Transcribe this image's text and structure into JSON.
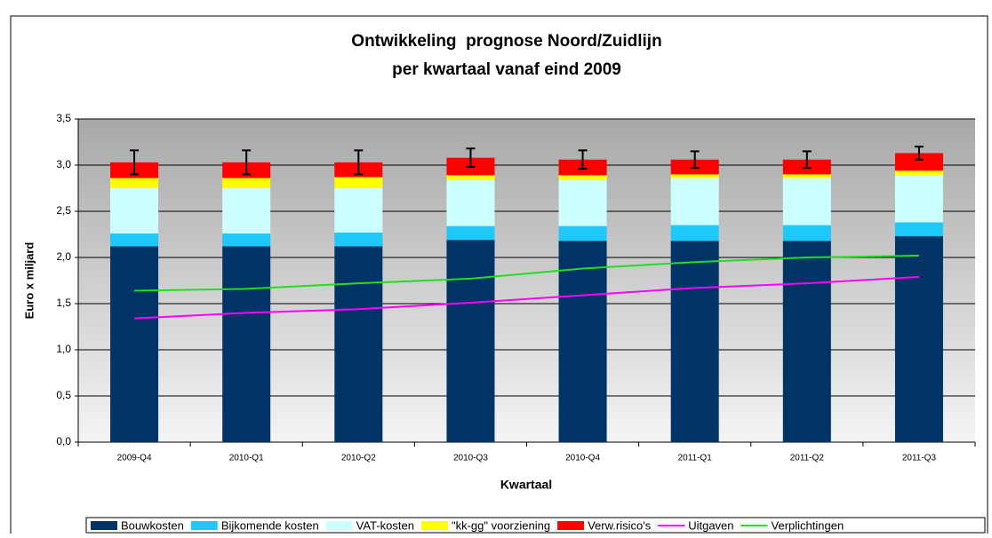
{
  "chart_data": {
    "type": "bar",
    "title": [
      "Ontwikkeling  prognose Noord/Zuidlijn",
      "per kwartaal vanaf eind 2009"
    ],
    "y_label": "Euro x miljard",
    "x_label": "Kwartaal",
    "categories": [
      "2009-Q4",
      "2010-Q1",
      "2010-Q2",
      "2010-Q3",
      "2010-Q4",
      "2011-Q1",
      "2011-Q2",
      "2011-Q3"
    ],
    "series": [
      {
        "name": "Bouwkosten",
        "color": "#003366",
        "type": "bar",
        "values": [
          2.12,
          2.12,
          2.12,
          2.19,
          2.18,
          2.18,
          2.18,
          2.23
        ]
      },
      {
        "name": "Bijkomende kosten",
        "color": "#1ec8f8",
        "type": "bar",
        "values": [
          0.14,
          0.14,
          0.15,
          0.15,
          0.16,
          0.17,
          0.17,
          0.15
        ]
      },
      {
        "name": "VAT-kosten",
        "color": "#ccffff",
        "type": "bar",
        "values": [
          0.49,
          0.49,
          0.48,
          0.5,
          0.5,
          0.51,
          0.51,
          0.51
        ]
      },
      {
        "name": "\"kk-gg\" voorziening",
        "color": "#ffff00",
        "type": "bar",
        "values": [
          0.11,
          0.11,
          0.12,
          0.05,
          0.05,
          0.04,
          0.04,
          0.05
        ]
      },
      {
        "name": "Verw.risico's",
        "color": "#ff0000",
        "type": "bar",
        "values": [
          0.17,
          0.17,
          0.16,
          0.19,
          0.17,
          0.16,
          0.16,
          0.19
        ]
      },
      {
        "name": "Uitgaven",
        "color": "#ff00ff",
        "type": "line",
        "values": [
          1.34,
          1.4,
          1.44,
          1.51,
          1.59,
          1.67,
          1.72,
          1.79
        ]
      },
      {
        "name": "Verplichtingen",
        "color": "#22dd22",
        "type": "line",
        "values": [
          1.64,
          1.66,
          1.72,
          1.77,
          1.88,
          1.95,
          2.0,
          2.02
        ]
      }
    ],
    "errors": [
      0.13,
      0.13,
      0.13,
      0.1,
      0.1,
      0.09,
      0.09,
      0.07
    ],
    "ylim": [
      0,
      3.5
    ],
    "yticks": [
      {
        "value": 0,
        "label": "0,0"
      },
      {
        "value": 0.5,
        "label": "0,5"
      },
      {
        "value": 1,
        "label": "1,0"
      },
      {
        "value": 1.5,
        "label": "1,5"
      },
      {
        "value": 2,
        "label": "2,0"
      },
      {
        "value": 2.5,
        "label": "2,5"
      },
      {
        "value": 3,
        "label": "3,0"
      },
      {
        "value": 3.5,
        "label": "3,5"
      }
    ],
    "grid": true,
    "legend": "bottom"
  }
}
